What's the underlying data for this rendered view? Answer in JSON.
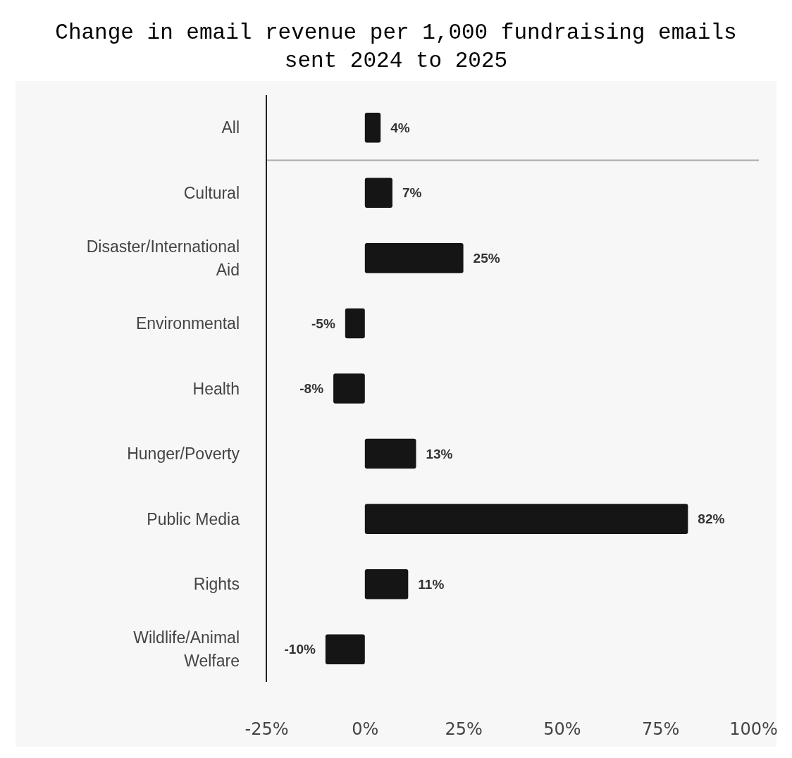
{
  "chart_data": {
    "type": "bar",
    "title": "Change in email revenue per 1,000 fundraising emails sent 2024 to 2025",
    "orientation": "horizontal",
    "categories": [
      "All",
      "Cultural",
      "Disaster/International Aid",
      "Environmental",
      "Health",
      "Hunger/Poverty",
      "Public Media",
      "Rights",
      "Wildlife/Animal Welfare"
    ],
    "values": [
      4,
      7,
      25,
      -5,
      -8,
      13,
      82,
      11,
      -10
    ],
    "color": "#151515",
    "value_labels": [
      "4%",
      "7%",
      "25%",
      "-5%",
      "-8%",
      "13%",
      "82%",
      "11%",
      "-10%"
    ],
    "xlim": [
      -25,
      100
    ],
    "xticks": [
      {
        "value": -25,
        "label": "-25%"
      },
      {
        "value": 0,
        "label": "0%"
      },
      {
        "value": 25,
        "label": "25%"
      },
      {
        "value": 50,
        "label": "50%"
      },
      {
        "value": 75,
        "label": "75%"
      },
      {
        "value": 100,
        "label": "100%"
      }
    ],
    "ref_lines": [
      {
        "axis": "y",
        "value": "All",
        "color": "#aaaaaa"
      }
    ],
    "grid": false
  }
}
